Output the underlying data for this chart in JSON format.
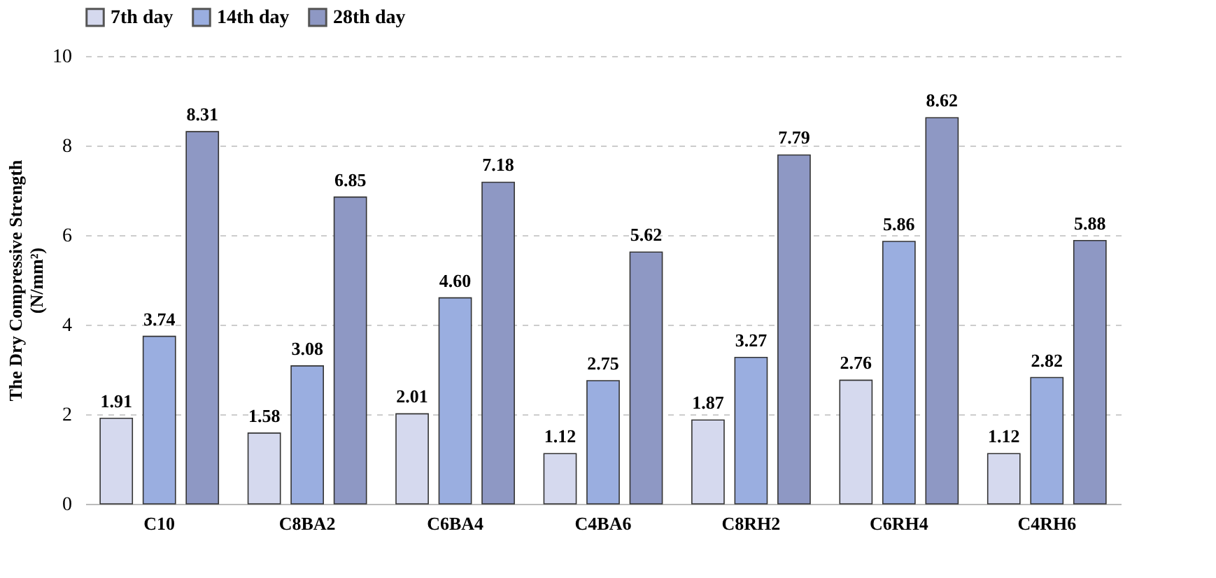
{
  "chart_data": {
    "type": "bar",
    "ylabel": "The Dry Compressive Strength (N/mm²)",
    "categories": [
      "C10",
      "C8BA2",
      "C6BA4",
      "C4BA6",
      "C8RH2",
      "C6RH4",
      "C4RH6"
    ],
    "series": [
      {
        "name": "7th day",
        "color": "#d5d9ee",
        "values": [
          1.91,
          1.58,
          2.01,
          1.12,
          1.87,
          2.76,
          1.12
        ],
        "value_labels": [
          "1.91",
          "1.58",
          "2.01",
          "1.12",
          "1.87",
          "2.76",
          "1.12"
        ]
      },
      {
        "name": "14th day",
        "color": "#9aaee0",
        "values": [
          3.74,
          3.08,
          4.6,
          2.75,
          3.27,
          5.86,
          2.82
        ],
        "value_labels": [
          "3.74",
          "3.08",
          "4.60",
          "2.75",
          "3.27",
          "5.86",
          "2.82"
        ]
      },
      {
        "name": "28th day",
        "color": "#8e98c4",
        "values": [
          8.31,
          6.85,
          7.18,
          5.62,
          7.79,
          8.62,
          5.88
        ],
        "value_labels": [
          "8.31",
          "6.85",
          "7.18",
          "5.62",
          "7.79",
          "8.62",
          "5.88"
        ]
      }
    ],
    "ylim": [
      0,
      10
    ],
    "yticks": [
      0,
      2,
      4,
      6,
      8,
      10
    ],
    "grid": "y",
    "legend": "top"
  }
}
